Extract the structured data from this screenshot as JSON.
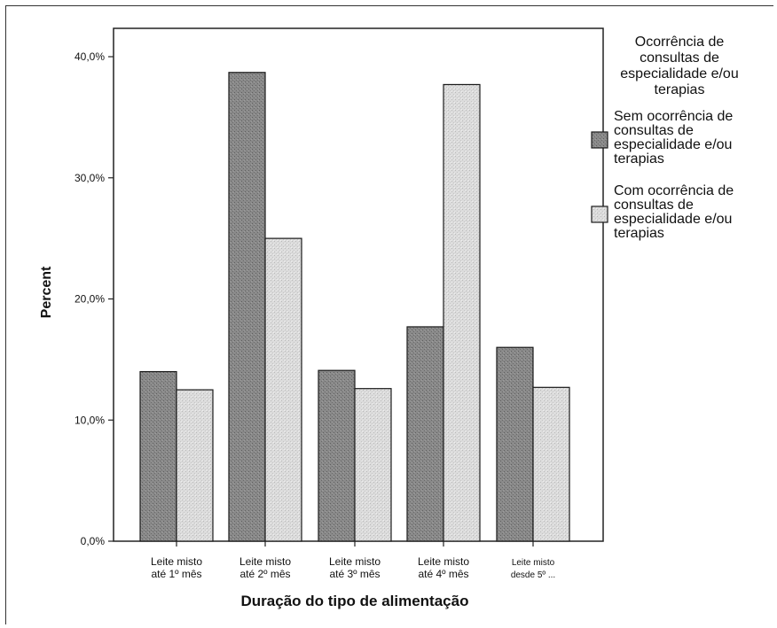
{
  "chart_data": {
    "type": "bar",
    "categories": [
      [
        "Leite misto",
        "até 1º mês"
      ],
      [
        "Leite misto",
        "até 2º mês"
      ],
      [
        "Leite misto",
        "até 3º mês"
      ],
      [
        "Leite misto",
        "até 4º mês"
      ],
      [
        "Leite misto",
        "desde 5º ..."
      ]
    ],
    "series": [
      {
        "name": "Sem ocorrência de consultas de especialidade e/ou terapias",
        "values": [
          14.0,
          38.7,
          14.1,
          17.7,
          16.0
        ],
        "color": "#7f7f7f"
      },
      {
        "name": "Com ocorrência de consultas de especialidade e/ou terapias",
        "values": [
          12.5,
          25.0,
          12.6,
          37.7,
          12.7
        ],
        "color": "#d6d6d6"
      }
    ],
    "legend_title": "Ocorrência de consultas de especialidade e/ou terapias",
    "legend_title_lines": [
      "Ocorrência de",
      "consultas de",
      "especialidade e/ou",
      "terapias"
    ],
    "legend_lines": [
      [
        "Sem ocorrência de",
        "consultas de",
        "especialidade e/ou",
        "terapias"
      ],
      [
        "Com ocorrência de",
        "consultas de",
        "especialidade e/ou",
        "terapias"
      ]
    ],
    "legend_placement": "right",
    "xlabel": "Duração do tipo de alimentação",
    "ylabel": "Percent",
    "yticks": [
      0,
      10,
      20,
      30,
      40
    ],
    "ytick_labels": [
      "0,0%",
      "10,0%",
      "20,0%",
      "30,0%",
      "40,0%"
    ],
    "ylim": [
      0,
      40
    ],
    "grid": false
  }
}
